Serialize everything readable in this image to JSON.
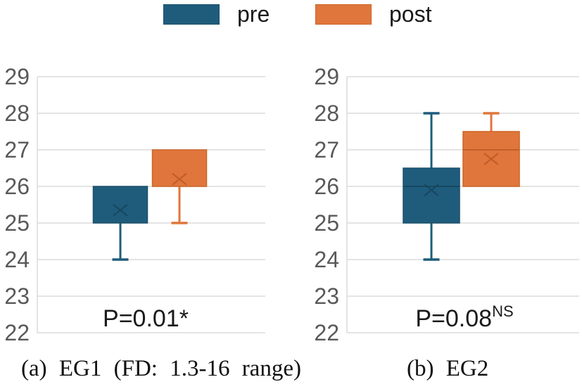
{
  "colors": {
    "pre_fill": "#1F5C7C",
    "pre_border": "#1B506C",
    "pre_dark": "#16455C",
    "post_fill": "#E0763C",
    "post_border": "#CB6527",
    "post_dark": "#BF5B28",
    "grid": "#DBDBDB",
    "tick_text": "#595959",
    "label_text": "#1A1A1A"
  },
  "legend": {
    "items": [
      {
        "label": "pre",
        "color_key": "pre"
      },
      {
        "label": "post",
        "color_key": "post"
      }
    ]
  },
  "chart_data": [
    {
      "type": "boxplot",
      "title": "(a) EG1 (FD: 1.3-16 range)",
      "p_base": "P=0.01*",
      "p_sup": "",
      "ylim": [
        22,
        29
      ],
      "yticks": [
        29,
        28,
        27,
        26,
        25,
        24,
        23,
        22
      ],
      "grid": true,
      "legend_position": "top",
      "series": [
        {
          "name": "pre",
          "q1": 25,
          "q3": 26,
          "median": null,
          "mean": 25.35,
          "whisker_low": 24,
          "whisker_high": null
        },
        {
          "name": "post",
          "q1": 26,
          "q3": 27,
          "median": null,
          "mean": 26.2,
          "whisker_low": 25,
          "whisker_high": null
        }
      ]
    },
    {
      "type": "boxplot",
      "title": "(b) EG2",
      "p_base": "P=0.08",
      "p_sup": "NS",
      "ylim": [
        22,
        29
      ],
      "yticks": [
        29,
        28,
        27,
        26,
        25,
        24,
        23,
        22
      ],
      "grid": true,
      "legend_position": "top",
      "series": [
        {
          "name": "pre",
          "q1": 25,
          "q3": 26.5,
          "median": 26,
          "mean": 25.9,
          "whisker_low": 24,
          "whisker_high": 28
        },
        {
          "name": "post",
          "q1": 26,
          "q3": 27.5,
          "median": 27,
          "mean": 26.75,
          "whisker_low": null,
          "whisker_high": 28
        }
      ]
    }
  ]
}
